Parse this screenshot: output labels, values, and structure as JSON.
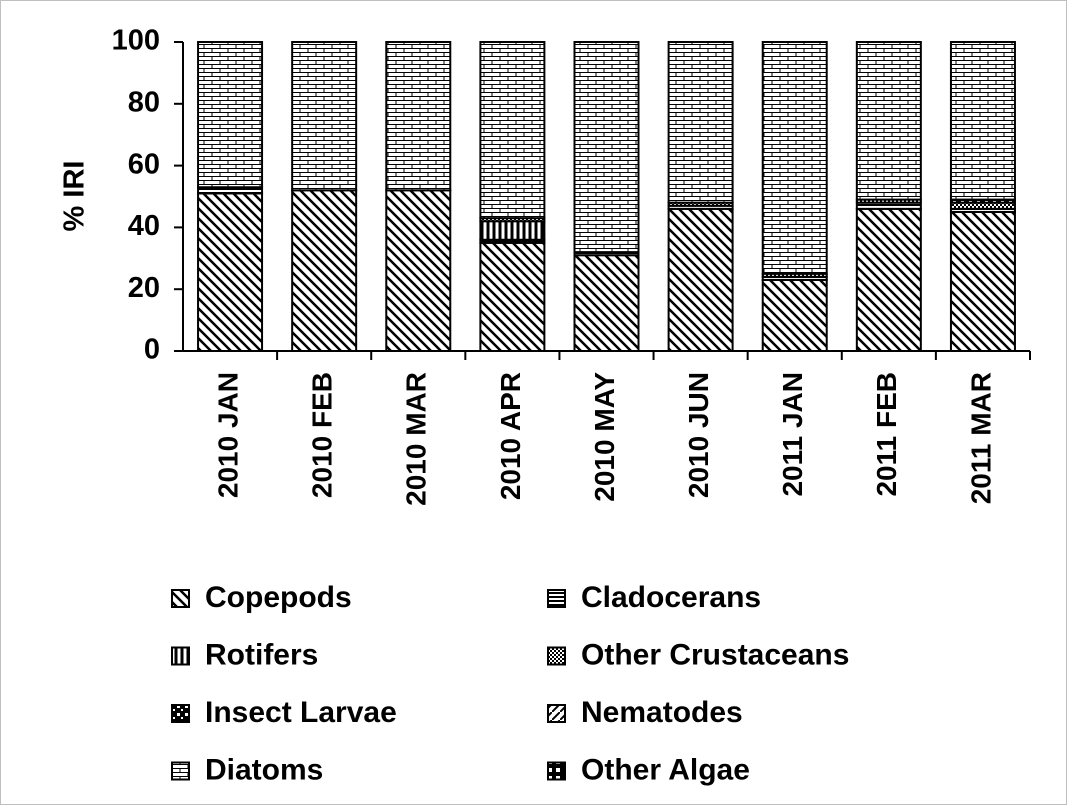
{
  "chart_data": {
    "type": "stacked-bar",
    "y_label": "% IRI",
    "categories": [
      "2010 JAN",
      "2010 FEB",
      "2010 MAR",
      "2010 APR",
      "2010 MAY",
      "2010 JUN",
      "2011 JAN",
      "2011 FEB",
      "2011 MAR"
    ],
    "series": [
      {
        "name": "Copepods",
        "color": "#000000",
        "pattern": "diagonal",
        "values": [
          51,
          52,
          52,
          35,
          31,
          46,
          23,
          46,
          45
        ]
      },
      {
        "name": "Cladocerans",
        "color": "#000000",
        "pattern": "horizontal",
        "values": [
          2,
          0,
          0,
          1,
          1,
          1,
          1,
          2,
          1
        ]
      },
      {
        "name": "Rotifers",
        "color": "#000000",
        "pattern": "vertical",
        "values": [
          0,
          0,
          0,
          6,
          0,
          0,
          0,
          0,
          0
        ]
      },
      {
        "name": "Other Crustaceans",
        "color": "#000000",
        "pattern": "dots",
        "values": [
          0,
          0,
          0,
          1,
          0,
          1,
          1,
          1,
          2
        ]
      },
      {
        "name": "Insect Larvae",
        "color": "#000000",
        "pattern": "checker",
        "values": [
          0,
          0,
          0,
          0,
          0,
          0,
          0,
          0,
          1
        ]
      },
      {
        "name": "Nematodes",
        "color": "#000000",
        "pattern": "diagonal-rev",
        "values": [
          0,
          0,
          0,
          0,
          0,
          0,
          0,
          0,
          0
        ]
      },
      {
        "name": "Diatoms",
        "color": "#000000",
        "pattern": "brick",
        "values": [
          47,
          48,
          48,
          57,
          68,
          52,
          75,
          51,
          51
        ]
      },
      {
        "name": "Other Algae",
        "color": "#000000",
        "pattern": "half",
        "values": [
          0,
          0,
          0,
          0,
          0,
          0,
          0,
          0,
          0
        ]
      }
    ],
    "ylim": [
      0,
      100
    ],
    "yticks": [
      0,
      20,
      40,
      60,
      80,
      100
    ],
    "grid": false,
    "legend": "bottom"
  }
}
